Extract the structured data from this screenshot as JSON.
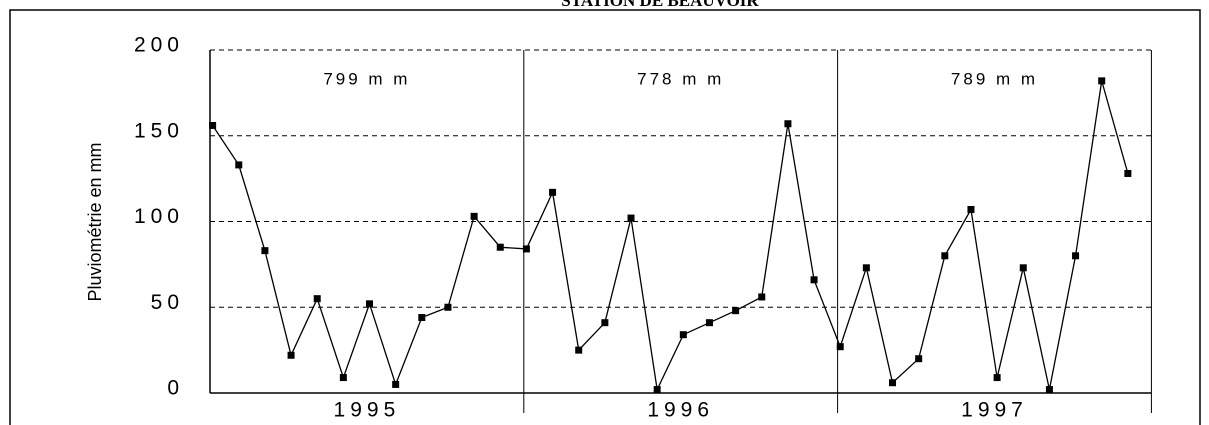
{
  "chart_data": {
    "type": "line",
    "title": "STATION DE BEAUVOIR",
    "ylabel": "Pluviométrie en mm",
    "categories": [
      null,
      null,
      null,
      null,
      null,
      null,
      null,
      null,
      null,
      null,
      null,
      null,
      null,
      null,
      null,
      null,
      null,
      null,
      null,
      null,
      null,
      null,
      null,
      null,
      null,
      null,
      null,
      null,
      null,
      null,
      null,
      null,
      null,
      null,
      null,
      null
    ],
    "groups": [
      "1995",
      "1996",
      "1997"
    ],
    "annotations": [
      "799 m m",
      "778 m m",
      "789 m m"
    ],
    "series": [
      {
        "name": null,
        "color": "#000000",
        "values": [
          156,
          133,
          83,
          22,
          55,
          9,
          52,
          5,
          44,
          50,
          103,
          85,
          84,
          117,
          25,
          41,
          102,
          2,
          34,
          41,
          48,
          56,
          157,
          66,
          27,
          73,
          6,
          20,
          80,
          107,
          9,
          73,
          2,
          80,
          182,
          128
        ]
      }
    ],
    "ylim": [
      0,
      200
    ],
    "yticks": [
      0,
      50,
      100,
      150,
      200
    ],
    "grid": true
  }
}
